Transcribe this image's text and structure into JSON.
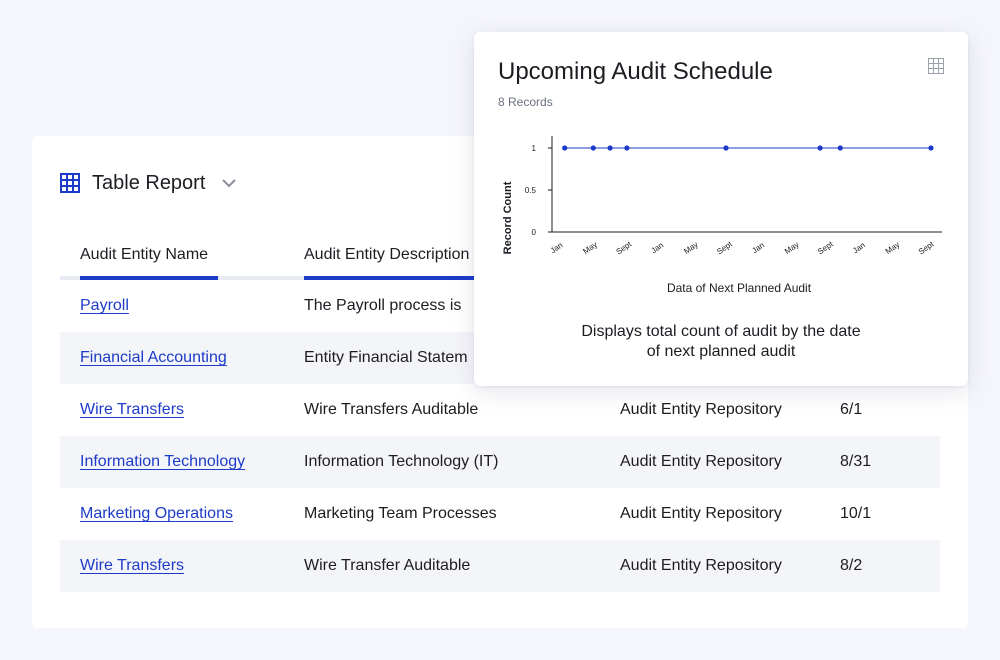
{
  "report": {
    "title": "Table Report",
    "columns": [
      "Audit Entity Name",
      "Audit Entity Description",
      "",
      ""
    ],
    "rows": [
      {
        "name": "Payroll",
        "description": "The Payroll process is",
        "repository": "",
        "date": ""
      },
      {
        "name": "Financial Accounting",
        "description": "Entity Financial Statem",
        "repository": "",
        "date": ""
      },
      {
        "name": "Wire Transfers",
        "description": "Wire Transfers Auditable",
        "repository": "Audit Entity Repository",
        "date": "6/1"
      },
      {
        "name": "Information Technology",
        "description": "Information Technology (IT)",
        "repository": "Audit Entity Repository",
        "date": "8/31"
      },
      {
        "name": "Marketing Operations",
        "description": "Marketing Team Processes",
        "repository": "Audit Entity Repository",
        "date": "10/1"
      },
      {
        "name": "Wire Transfers",
        "description": "Wire Transfer Auditable",
        "repository": "Audit Entity Repository",
        "date": "8/2"
      }
    ]
  },
  "popup": {
    "title": "Upcoming Audit Schedule",
    "records": "8 Records",
    "description_line1": "Displays total count of audit by the date",
    "description_line2": "of next planned audit"
  },
  "chart_data": {
    "type": "line",
    "xlabel": "Data of Next Planned Audit",
    "ylabel": "Record Count",
    "x_ticks": [
      "Jan",
      "May",
      "Sept",
      "Jan",
      "May",
      "Sept",
      "Jan",
      "May",
      "Sept",
      "Jan",
      "May",
      "Sept"
    ],
    "y_ticks": [
      "0",
      "0.5",
      "1"
    ],
    "ylim": [
      0,
      1
    ],
    "grid": false,
    "series": [
      {
        "values": [
          1,
          1,
          1,
          1,
          1,
          1,
          1,
          1
        ],
        "x_positions": [
          0.2,
          1.05,
          1.55,
          2.05,
          5.0,
          7.8,
          8.4,
          11.1
        ]
      }
    ],
    "color": "#1d3bc9"
  },
  "colors": {
    "accent": "#1d3bc9",
    "row_shade": "#f4f5f9",
    "background": "#f5f6fb"
  },
  "icons": {
    "report": "grid-icon",
    "dropdown": "chevron-down-icon",
    "table_view": "table-view-icon"
  }
}
